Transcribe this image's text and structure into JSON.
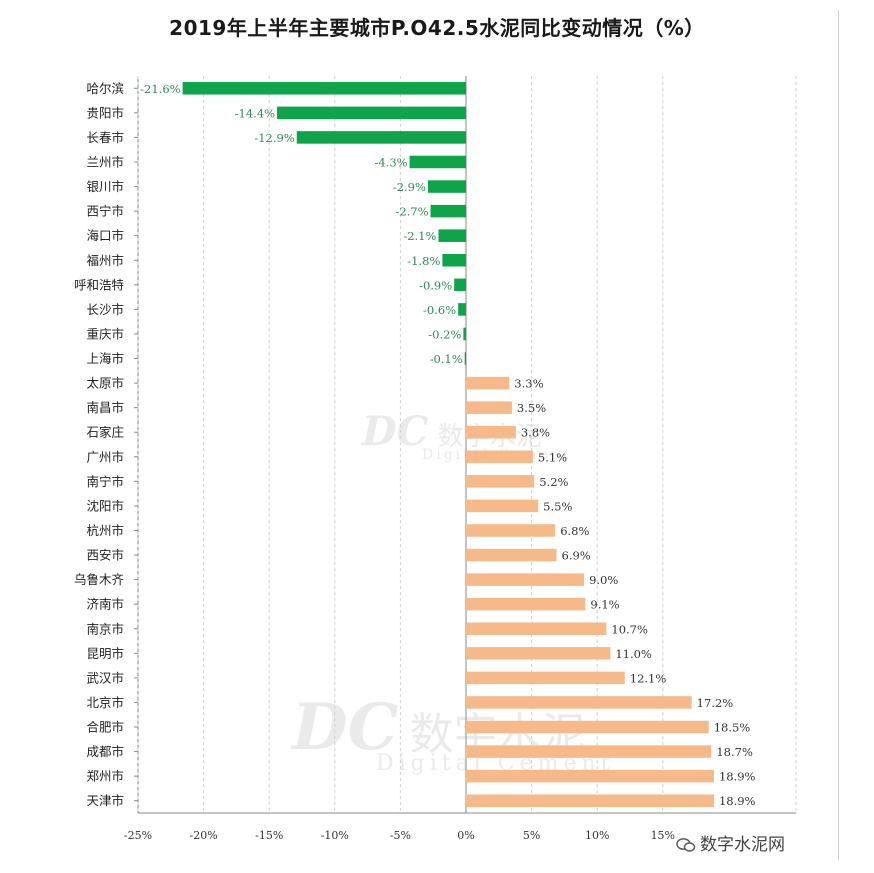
{
  "chart_data": {
    "type": "bar",
    "orientation": "horizontal",
    "title": "2019年上半年主要城市P.O42.5水泥同比变动情况（%）",
    "categories": [
      "哈尔滨",
      "贵阳市",
      "长春市",
      "兰州市",
      "银川市",
      "西宁市",
      "海口市",
      "福州市",
      "呼和浩特",
      "长沙市",
      "重庆市",
      "上海市",
      "太原市",
      "南昌市",
      "石家庄",
      "广州市",
      "南宁市",
      "沈阳市",
      "杭州市",
      "西安市",
      "乌鲁木齐",
      "济南市",
      "南京市",
      "昆明市",
      "武汉市",
      "北京市",
      "合肥市",
      "成都市",
      "郑州市",
      "天津市"
    ],
    "values": [
      -21.6,
      -14.4,
      -12.9,
      -4.3,
      -2.9,
      -2.7,
      -2.1,
      -1.8,
      -0.9,
      -0.6,
      -0.2,
      -0.1,
      3.3,
      3.5,
      3.8,
      5.1,
      5.2,
      5.5,
      6.8,
      6.9,
      9.0,
      9.1,
      10.7,
      11.0,
      12.1,
      17.2,
      18.5,
      18.7,
      18.9,
      18.9
    ],
    "value_labels": [
      "-21.6%",
      "-14.4%",
      "-12.9%",
      "-4.3%",
      "-2.9%",
      "-2.7%",
      "-2.1%",
      "-1.8%",
      "-0.9%",
      "-0.6%",
      "-0.2%",
      "-0.1%",
      "3.3%",
      "3.5%",
      "3.8%",
      "5.1%",
      "5.2%",
      "5.5%",
      "6.8%",
      "6.9%",
      "9.0%",
      "9.1%",
      "10.7%",
      "11.0%",
      "12.1%",
      "17.2%",
      "18.5%",
      "18.7%",
      "18.9%",
      "18.9%"
    ],
    "xlim": [
      -25,
      25
    ],
    "x_ticks": [
      -25,
      -20,
      -15,
      -10,
      -5,
      0,
      5,
      10,
      15
    ],
    "x_tick_labels": [
      "-25%",
      "-20%",
      "-15%",
      "-10%",
      "-5%",
      "0%",
      "5%",
      "10%",
      "15%"
    ],
    "grid": "vertical dashed",
    "colors": {
      "negative": "#0fa34a",
      "positive": "#f5b98a",
      "negative_label": "#2f8a55",
      "positive_label": "#333333",
      "grid": "#cfcfcf",
      "axis": "#888888"
    }
  },
  "watermarks": {
    "logo_text": "DC",
    "cn_text": "数字水泥",
    "en_text": "Digital Cement",
    "footer_text": "数字水泥网"
  }
}
